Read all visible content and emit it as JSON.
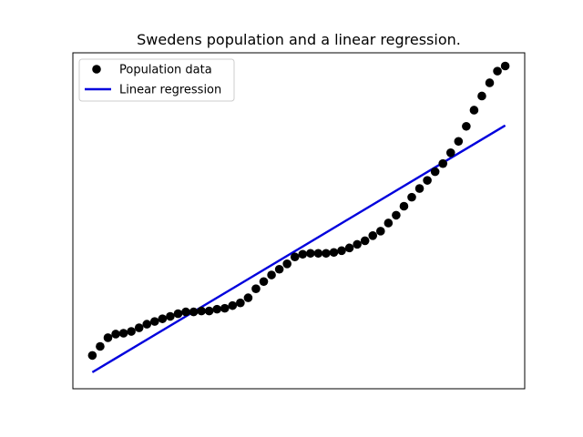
{
  "chart_data": {
    "type": "scatter",
    "title": "Swedens population and a linear regression.",
    "xlabel": "",
    "ylabel": "",
    "grid": false,
    "axis_ticks_shown": false,
    "legend_position": "top-left",
    "series": [
      {
        "name": "Population data",
        "kind": "scatter",
        "color": "#000000",
        "x": [
          0,
          1,
          2,
          3,
          4,
          5,
          6,
          7,
          8,
          9,
          10,
          11,
          12,
          13,
          14,
          15,
          16,
          17,
          18,
          19,
          20,
          21,
          22,
          23,
          24,
          25,
          26,
          27,
          28,
          29,
          30,
          31,
          32,
          33,
          34,
          35,
          36,
          37,
          38,
          39,
          40,
          41,
          42,
          43,
          44,
          45,
          46,
          47,
          48,
          49,
          50,
          51,
          52,
          53
        ],
        "y": [
          0.0,
          0.03,
          0.059,
          0.071,
          0.074,
          0.08,
          0.092,
          0.104,
          0.113,
          0.122,
          0.13,
          0.139,
          0.145,
          0.145,
          0.148,
          0.148,
          0.154,
          0.157,
          0.166,
          0.175,
          0.192,
          0.222,
          0.246,
          0.268,
          0.287,
          0.305,
          0.328,
          0.337,
          0.34,
          0.34,
          0.34,
          0.343,
          0.349,
          0.358,
          0.37,
          0.382,
          0.399,
          0.414,
          0.441,
          0.467,
          0.497,
          0.527,
          0.556,
          0.583,
          0.612,
          0.639,
          0.675,
          0.713,
          0.763,
          0.817,
          0.864,
          0.908,
          0.947,
          0.964
        ]
      },
      {
        "name": "Linear regression",
        "kind": "line",
        "color": "#0000dd",
        "x": [
          0,
          53
        ],
        "y": [
          -0.056,
          0.766
        ]
      }
    ],
    "xlim": [
      -2.5,
      55.5
    ],
    "ylim": [
      -0.111,
      1.008
    ]
  }
}
